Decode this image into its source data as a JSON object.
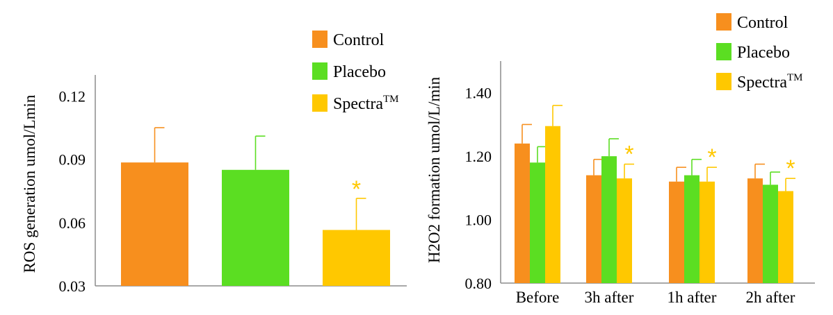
{
  "colors": {
    "control": "#F78F1E",
    "placebo": "#5BDE22",
    "spectra": "#FFC800",
    "axis": "#8C8C8C",
    "star": "#FFC800"
  },
  "legend": {
    "control": "Control",
    "placebo": "Placebo",
    "spectra_base": "Spectra",
    "spectra_super": "TM"
  },
  "chart_data": [
    {
      "type": "bar",
      "title": "",
      "xlabel": "",
      "ylabel": "ROS generation umol/Lmin",
      "ylim": [
        0.03,
        0.13
      ],
      "yticks": [
        "0.03",
        "0.06",
        "0.09",
        "0.12"
      ],
      "categories": [
        "Control",
        "Placebo",
        "Spectra™"
      ],
      "values": [
        0.0885,
        0.085,
        0.0565
      ],
      "errors": [
        0.0165,
        0.016,
        0.015
      ],
      "significance": [
        "",
        "",
        "*"
      ],
      "legend_position": "top-right",
      "grid": false
    },
    {
      "type": "bar",
      "title": "",
      "xlabel": "",
      "ylabel": "H2O2 formation umol/L/min",
      "ylim": [
        0.8,
        1.5
      ],
      "yticks": [
        "0.80",
        "1.00",
        "1.20",
        "1.40"
      ],
      "categories": [
        "Before",
        "3h after",
        "1h after",
        "2h after"
      ],
      "series": [
        {
          "name": "Control",
          "values": [
            1.24,
            1.14,
            1.12,
            1.13
          ],
          "errors": [
            0.06,
            0.05,
            0.045,
            0.045
          ]
        },
        {
          "name": "Placebo",
          "values": [
            1.18,
            1.2,
            1.14,
            1.11
          ],
          "errors": [
            0.05,
            0.055,
            0.05,
            0.04
          ]
        },
        {
          "name": "Spectra™",
          "values": [
            1.295,
            1.13,
            1.12,
            1.09
          ],
          "errors": [
            0.065,
            0.045,
            0.045,
            0.04
          ]
        }
      ],
      "significance": [
        [
          "",
          "",
          "",
          ""
        ],
        [
          "",
          "",
          "",
          ""
        ],
        [
          "",
          "*",
          "*",
          "*"
        ]
      ],
      "legend_position": "top-right",
      "grid": false
    }
  ]
}
